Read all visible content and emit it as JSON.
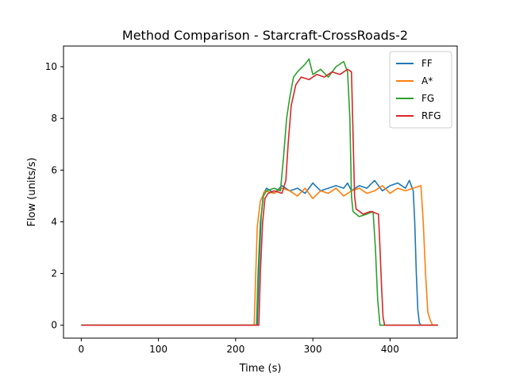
{
  "chart_data": {
    "type": "line",
    "title": "Method Comparison - Starcraft-CrossRoads-2",
    "xlabel": "Time (s)",
    "ylabel": "Flow (units/s)",
    "xlim": [
      -23,
      487
    ],
    "ylim": [
      -0.5,
      10.8
    ],
    "xticks": [
      0,
      100,
      200,
      300,
      400
    ],
    "yticks": [
      0,
      2,
      4,
      6,
      8,
      10
    ],
    "grid": false,
    "legend_position": "top-right",
    "series": [
      {
        "name": "FF",
        "color": "#1f77b4",
        "points": [
          [
            0,
            0
          ],
          [
            228,
            0
          ],
          [
            230,
            2.0
          ],
          [
            233,
            4.2
          ],
          [
            236,
            5.1
          ],
          [
            240,
            5.3
          ],
          [
            250,
            5.1
          ],
          [
            260,
            5.4
          ],
          [
            270,
            5.2
          ],
          [
            280,
            5.3
          ],
          [
            290,
            5.1
          ],
          [
            300,
            5.5
          ],
          [
            310,
            5.2
          ],
          [
            320,
            5.3
          ],
          [
            330,
            5.4
          ],
          [
            340,
            5.3
          ],
          [
            345,
            5.5
          ],
          [
            350,
            5.2
          ],
          [
            360,
            5.4
          ],
          [
            370,
            5.3
          ],
          [
            380,
            5.6
          ],
          [
            390,
            5.2
          ],
          [
            400,
            5.4
          ],
          [
            410,
            5.5
          ],
          [
            420,
            5.3
          ],
          [
            425,
            5.6
          ],
          [
            430,
            5.2
          ],
          [
            432,
            4.0
          ],
          [
            434,
            2.0
          ],
          [
            436,
            0.6
          ],
          [
            438,
            0.1
          ],
          [
            440,
            0
          ],
          [
            462,
            0
          ]
        ]
      },
      {
        "name": "A*",
        "color": "#ff7f0e",
        "points": [
          [
            0,
            0
          ],
          [
            224,
            0
          ],
          [
            226,
            2.0
          ],
          [
            228,
            3.8
          ],
          [
            232,
            4.8
          ],
          [
            238,
            5.2
          ],
          [
            250,
            5.1
          ],
          [
            260,
            5.3
          ],
          [
            270,
            5.2
          ],
          [
            280,
            5.0
          ],
          [
            290,
            5.3
          ],
          [
            300,
            4.9
          ],
          [
            310,
            5.2
          ],
          [
            320,
            5.1
          ],
          [
            330,
            5.3
          ],
          [
            340,
            5.0
          ],
          [
            350,
            5.2
          ],
          [
            360,
            5.3
          ],
          [
            370,
            5.1
          ],
          [
            380,
            5.2
          ],
          [
            390,
            5.4
          ],
          [
            400,
            5.1
          ],
          [
            410,
            5.3
          ],
          [
            420,
            5.2
          ],
          [
            430,
            5.3
          ],
          [
            440,
            5.4
          ],
          [
            443,
            4.0
          ],
          [
            446,
            2.0
          ],
          [
            449,
            0.5
          ],
          [
            452,
            0.2
          ],
          [
            455,
            0
          ],
          [
            462,
            0
          ]
        ]
      },
      {
        "name": "FG",
        "color": "#2ca02c",
        "points": [
          [
            0,
            0
          ],
          [
            227,
            0
          ],
          [
            229,
            2.0
          ],
          [
            232,
            4.0
          ],
          [
            236,
            5.0
          ],
          [
            240,
            5.2
          ],
          [
            250,
            5.3
          ],
          [
            258,
            5.2
          ],
          [
            262,
            6.5
          ],
          [
            266,
            8.0
          ],
          [
            270,
            8.8
          ],
          [
            275,
            9.6
          ],
          [
            280,
            9.8
          ],
          [
            290,
            10.1
          ],
          [
            295,
            10.3
          ],
          [
            300,
            9.7
          ],
          [
            310,
            9.9
          ],
          [
            320,
            9.6
          ],
          [
            330,
            10.0
          ],
          [
            340,
            10.2
          ],
          [
            345,
            9.8
          ],
          [
            348,
            8.0
          ],
          [
            350,
            5.0
          ],
          [
            352,
            4.4
          ],
          [
            360,
            4.2
          ],
          [
            370,
            4.3
          ],
          [
            378,
            4.4
          ],
          [
            381,
            3.0
          ],
          [
            384,
            1.0
          ],
          [
            387,
            0
          ],
          [
            462,
            0
          ]
        ]
      },
      {
        "name": "RFG",
        "color": "#d62728",
        "points": [
          [
            0,
            0
          ],
          [
            230,
            0
          ],
          [
            232,
            2.0
          ],
          [
            235,
            4.0
          ],
          [
            238,
            4.9
          ],
          [
            242,
            5.1
          ],
          [
            250,
            5.2
          ],
          [
            260,
            5.1
          ],
          [
            265,
            5.6
          ],
          [
            268,
            7.0
          ],
          [
            272,
            8.5
          ],
          [
            278,
            9.3
          ],
          [
            285,
            9.6
          ],
          [
            295,
            9.5
          ],
          [
            305,
            9.7
          ],
          [
            315,
            9.6
          ],
          [
            325,
            9.8
          ],
          [
            335,
            9.7
          ],
          [
            345,
            9.9
          ],
          [
            350,
            9.8
          ],
          [
            352,
            7.5
          ],
          [
            354,
            5.0
          ],
          [
            356,
            4.5
          ],
          [
            365,
            4.3
          ],
          [
            375,
            4.4
          ],
          [
            385,
            4.3
          ],
          [
            387,
            3.0
          ],
          [
            389,
            1.5
          ],
          [
            391,
            0.3
          ],
          [
            393,
            0
          ],
          [
            462,
            0
          ]
        ]
      }
    ]
  }
}
